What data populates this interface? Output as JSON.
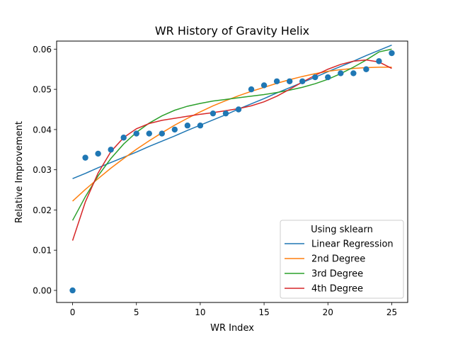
{
  "chart_data": {
    "type": "scatter",
    "title": "WR History of Gravity Helix",
    "xlabel": "WR Index",
    "ylabel": "Relative Improvement",
    "xlim": [
      -1.25,
      26.25
    ],
    "ylim": [
      -0.003,
      0.062
    ],
    "xticks": [
      0,
      5,
      10,
      15,
      20,
      25
    ],
    "xtick_labels": [
      "0",
      "5",
      "10",
      "15",
      "20",
      "25"
    ],
    "yticks": [
      0.0,
      0.01,
      0.02,
      0.03,
      0.04,
      0.05,
      0.06
    ],
    "ytick_labels": [
      "0.00",
      "0.01",
      "0.02",
      "0.03",
      "0.04",
      "0.05",
      "0.06"
    ],
    "grid": false,
    "legend": {
      "title": "Using sklearn",
      "placement": "lower right",
      "entries": [
        "Linear Regression",
        "2nd Degree",
        "3rd Degree",
        "4th Degree"
      ]
    },
    "points": {
      "color": "#1f77b4",
      "x": [
        0,
        1,
        2,
        3,
        4,
        5,
        6,
        7,
        8,
        9,
        10,
        11,
        12,
        13,
        14,
        15,
        16,
        17,
        18,
        19,
        20,
        21,
        22,
        23,
        24,
        25
      ],
      "y": [
        0.0,
        0.033,
        0.034,
        0.035,
        0.038,
        0.039,
        0.039,
        0.039,
        0.04,
        0.041,
        0.041,
        0.044,
        0.044,
        0.045,
        0.05,
        0.051,
        0.052,
        0.052,
        0.052,
        0.053,
        0.053,
        0.054,
        0.054,
        0.055,
        0.057,
        0.059
      ]
    },
    "series": [
      {
        "name": "Linear Regression",
        "color": "#1f77b4",
        "x": [
          0,
          1,
          2,
          3,
          4,
          5,
          6,
          7,
          8,
          9,
          10,
          11,
          12,
          13,
          14,
          15,
          16,
          17,
          18,
          19,
          20,
          21,
          22,
          23,
          24,
          25
        ],
        "y": [
          0.0278,
          0.0291,
          0.0305,
          0.0318,
          0.0331,
          0.0344,
          0.0358,
          0.0371,
          0.0384,
          0.0398,
          0.0411,
          0.0424,
          0.0437,
          0.0451,
          0.0464,
          0.0477,
          0.0491,
          0.0504,
          0.0517,
          0.053,
          0.0544,
          0.0557,
          0.057,
          0.0584,
          0.0597,
          0.061
        ]
      },
      {
        "name": "2nd Degree",
        "color": "#ff7f0e",
        "x": [
          0,
          1,
          2,
          3,
          4,
          5,
          6,
          7,
          8,
          9,
          10,
          11,
          12,
          13,
          14,
          15,
          16,
          17,
          18,
          19,
          20,
          21,
          22,
          23,
          24,
          25
        ],
        "y": [
          0.0222,
          0.0251,
          0.0278,
          0.0304,
          0.0328,
          0.0351,
          0.0372,
          0.0392,
          0.0411,
          0.0428,
          0.0444,
          0.0459,
          0.0472,
          0.0484,
          0.0495,
          0.0505,
          0.0515,
          0.0524,
          0.0532,
          0.0539,
          0.0545,
          0.0549,
          0.0552,
          0.0554,
          0.0555,
          0.0555
        ]
      },
      {
        "name": "3rd Degree",
        "color": "#2ca02c",
        "x": [
          0,
          1,
          2,
          3,
          4,
          5,
          6,
          7,
          8,
          9,
          10,
          11,
          12,
          13,
          14,
          15,
          16,
          17,
          18,
          19,
          20,
          21,
          22,
          23,
          24,
          25
        ],
        "y": [
          0.0174,
          0.0233,
          0.0285,
          0.0328,
          0.0364,
          0.0393,
          0.0416,
          0.0434,
          0.0448,
          0.0458,
          0.0465,
          0.0471,
          0.0475,
          0.0479,
          0.0483,
          0.0487,
          0.0492,
          0.0498,
          0.0505,
          0.0514,
          0.0525,
          0.0539,
          0.0555,
          0.0573,
          0.0593,
          0.06
        ]
      },
      {
        "name": "4th Degree",
        "color": "#d62728",
        "x": [
          0,
          1,
          2,
          3,
          4,
          5,
          6,
          7,
          8,
          9,
          10,
          11,
          12,
          13,
          14,
          15,
          16,
          17,
          18,
          19,
          20,
          21,
          22,
          23,
          24,
          25
        ],
        "y": [
          0.0124,
          0.022,
          0.0292,
          0.0345,
          0.038,
          0.0402,
          0.0415,
          0.0423,
          0.0428,
          0.0433,
          0.0438,
          0.0442,
          0.0447,
          0.0452,
          0.0459,
          0.0469,
          0.0483,
          0.05,
          0.0518,
          0.0535,
          0.055,
          0.0562,
          0.057,
          0.0573,
          0.0568,
          0.0552
        ]
      }
    ]
  }
}
